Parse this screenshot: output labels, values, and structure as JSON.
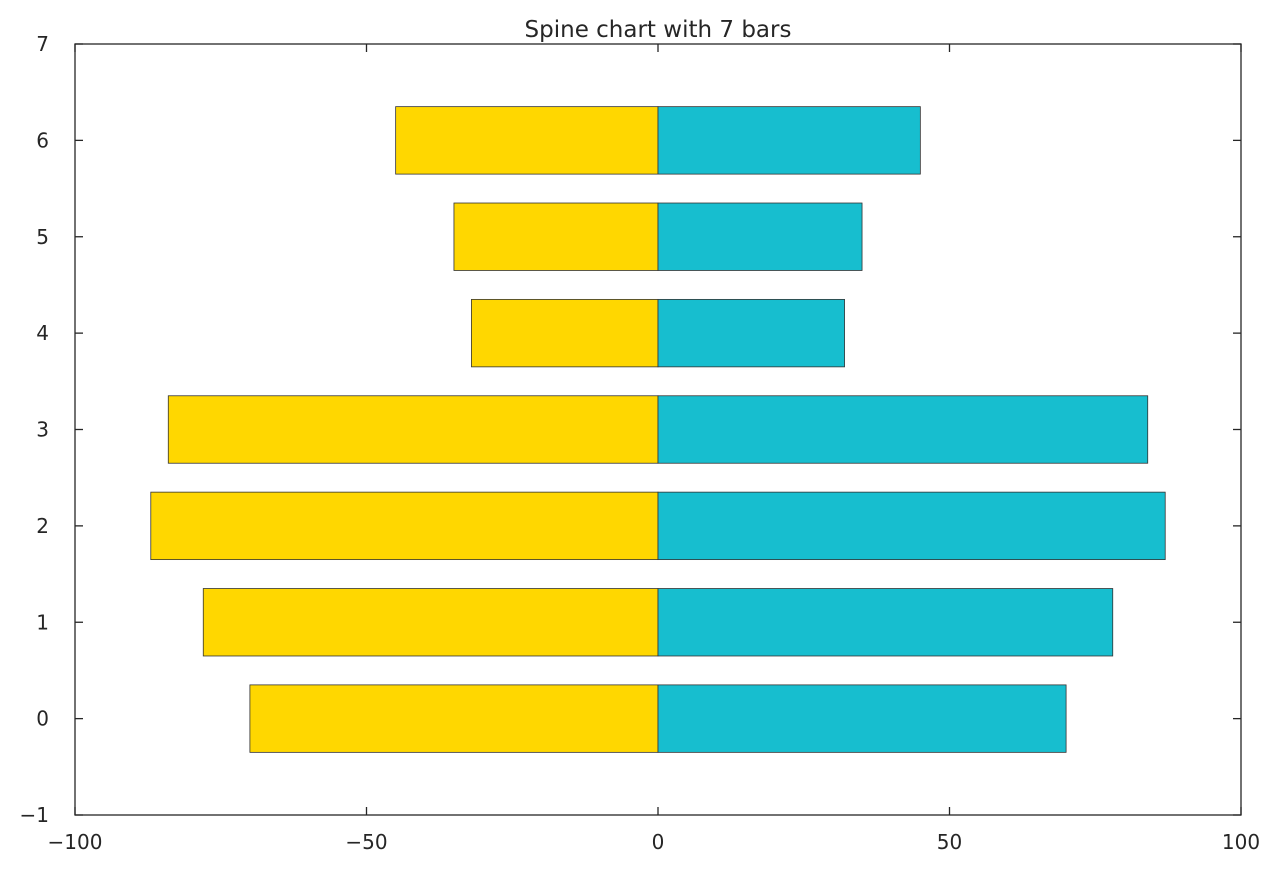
{
  "chart_data": {
    "type": "bar",
    "orientation": "horizontal",
    "title": "Spine chart with 7 bars",
    "xlabel": "",
    "ylabel": "",
    "xlim": [
      -100,
      100
    ],
    "ylim": [
      -1,
      7
    ],
    "grid": false,
    "categories": [
      0,
      1,
      2,
      3,
      4,
      5,
      6
    ],
    "series": [
      {
        "values": [
          -70,
          -78,
          -87,
          -84,
          -32,
          -35,
          -45
        ],
        "color": "#ffd700"
      },
      {
        "values": [
          70,
          78,
          87,
          84,
          32,
          35,
          45
        ],
        "color": "#17becf"
      }
    ],
    "xticks": [
      {
        "value": -100,
        "label": "−100"
      },
      {
        "value": -50,
        "label": "−50"
      },
      {
        "value": 0,
        "label": "0"
      },
      {
        "value": 50,
        "label": "50"
      },
      {
        "value": 100,
        "label": "100"
      }
    ],
    "yticks": [
      {
        "value": -1,
        "label": "−1"
      },
      {
        "value": 0,
        "label": "0"
      },
      {
        "value": 1,
        "label": "1"
      },
      {
        "value": 2,
        "label": "2"
      },
      {
        "value": 3,
        "label": "3"
      },
      {
        "value": 4,
        "label": "4"
      },
      {
        "value": 5,
        "label": "5"
      },
      {
        "value": 6,
        "label": "6"
      },
      {
        "value": 7,
        "label": "7"
      }
    ],
    "bar_height": 0.7,
    "edge_color": "#333333",
    "axis_color": "#262626"
  }
}
